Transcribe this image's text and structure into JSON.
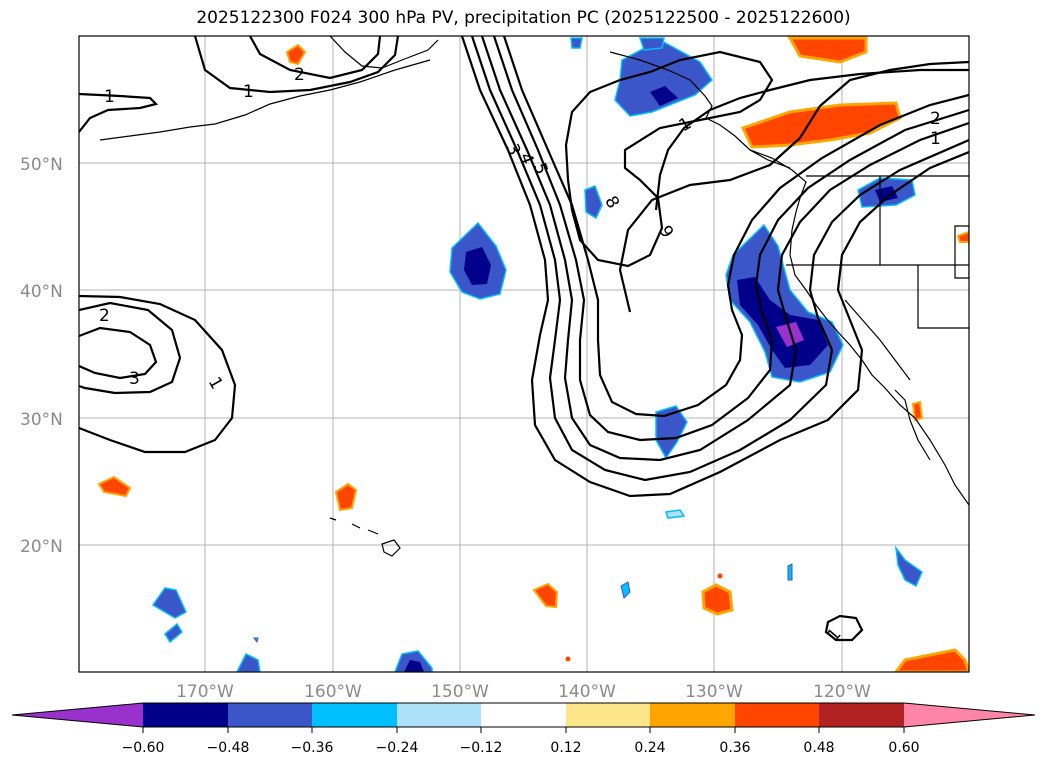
{
  "title": "2025122300 F024 300 hPa PV, precipitation PC (2025122500 - 2025122600)",
  "map": {
    "lon_labels": [
      "170°W",
      "160°W",
      "150°W",
      "140°W",
      "130°W",
      "120°W"
    ],
    "lat_labels": [
      "50°N",
      "40°N",
      "30°N",
      "20°N"
    ],
    "contour_labels": [
      "1",
      "1",
      "2",
      "2",
      "1",
      "3",
      "1",
      "3",
      "4",
      "5",
      "8",
      "9",
      "2",
      "1",
      "1"
    ]
  },
  "colorbar": {
    "tick_labels": [
      "−0.60",
      "−0.48",
      "−0.36",
      "−0.24",
      "−0.12",
      "0.12",
      "0.24",
      "0.36",
      "0.48",
      "0.60"
    ],
    "colors": [
      "#9932CC",
      "#00008B",
      "#3A56C8",
      "#00BFFF",
      "#ADE1FA",
      "#FFFFFF",
      "#FDE68A",
      "#FFA500",
      "#FF4500",
      "#B22222",
      "#FF85A8"
    ]
  }
}
